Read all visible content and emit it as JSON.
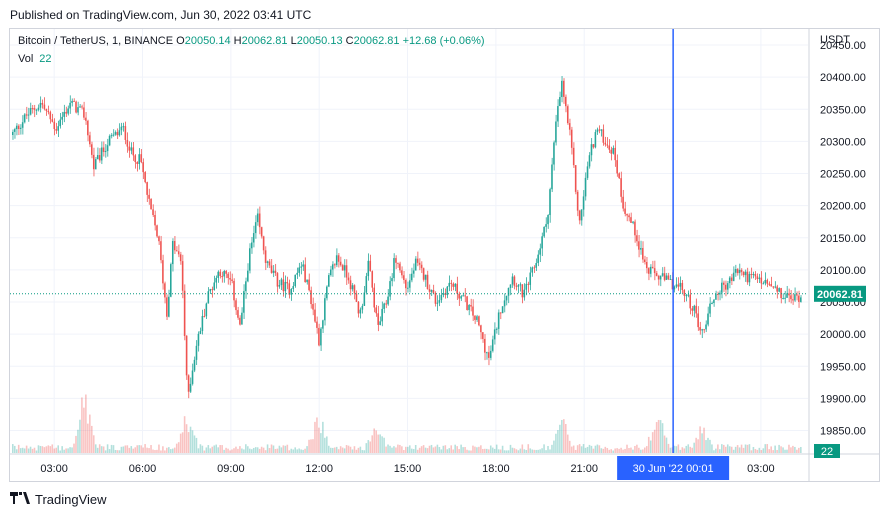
{
  "header": {
    "published": "Published on TradingView.com, Jun 30, 2022 03:41 UTC"
  },
  "legend": {
    "symbol": "Bitcoin / TetherUS, 1, BINANCE",
    "open_label": "O",
    "open": "20050.14",
    "high_label": "H",
    "high": "20062.81",
    "low_label": "L",
    "low": "20050.13",
    "close_label": "C",
    "close": "20062.81",
    "change": "+12.68 (+0.06%)",
    "vol_label": "Vol",
    "vol": "22"
  },
  "brand": {
    "name": "TradingView",
    "logo": "tradingview-logo-icon"
  },
  "colors": {
    "up": "#26a69a",
    "down": "#ef5350",
    "crosshair": "#2962ff",
    "price_tag": "#089981"
  },
  "chart_data": {
    "type": "candlestick",
    "currency": "USDT",
    "ylim": [
      19815,
      20475
    ],
    "y_ticks": [
      19850,
      19900,
      19950,
      20000,
      20050,
      20100,
      20150,
      20200,
      20250,
      20300,
      20350,
      20400,
      20450
    ],
    "y_tick_labels": [
      "19850.00",
      "19900.00",
      "19950.00",
      "20000.00",
      "20050.00",
      "20100.00",
      "20150.00",
      "20200.00",
      "20250.00",
      "20300.00",
      "20350.00",
      "20400.00",
      "20450.00"
    ],
    "x_ticks": [
      "03:00",
      "06:00",
      "09:00",
      "12:00",
      "15:00",
      "18:00",
      "21:00",
      "03:00"
    ],
    "x_tick_positions_hours": [
      3,
      6,
      9,
      12,
      15,
      18,
      21,
      27
    ],
    "x_range_hours": [
      1.5,
      28.6
    ],
    "last_price": "20062.81",
    "last_volume": "22",
    "crosshair_label": "30 Jun '22   00:01",
    "crosshair_hour": 24.02,
    "path": [
      [
        1.5,
        20310
      ],
      [
        2.0,
        20340
      ],
      [
        2.5,
        20360
      ],
      [
        3.0,
        20320
      ],
      [
        3.5,
        20360
      ],
      [
        4.0,
        20340
      ],
      [
        4.3,
        20260
      ],
      [
        4.8,
        20300
      ],
      [
        5.3,
        20320
      ],
      [
        5.6,
        20280
      ],
      [
        5.9,
        20270
      ],
      [
        6.2,
        20200
      ],
      [
        6.5,
        20150
      ],
      [
        6.8,
        20030
      ],
      [
        7.0,
        20140
      ],
      [
        7.3,
        20110
      ],
      [
        7.5,
        19900
      ],
      [
        7.8,
        19980
      ],
      [
        8.2,
        20060
      ],
      [
        8.6,
        20100
      ],
      [
        9.0,
        20080
      ],
      [
        9.3,
        20010
      ],
      [
        9.6,
        20120
      ],
      [
        9.9,
        20180
      ],
      [
        10.2,
        20110
      ],
      [
        10.6,
        20080
      ],
      [
        11.0,
        20070
      ],
      [
        11.4,
        20110
      ],
      [
        11.7,
        20060
      ],
      [
        12.0,
        19990
      ],
      [
        12.3,
        20080
      ],
      [
        12.6,
        20120
      ],
      [
        13.0,
        20090
      ],
      [
        13.4,
        20030
      ],
      [
        13.7,
        20110
      ],
      [
        14.0,
        20010
      ],
      [
        14.3,
        20050
      ],
      [
        14.6,
        20120
      ],
      [
        15.0,
        20070
      ],
      [
        15.3,
        20110
      ],
      [
        15.6,
        20090
      ],
      [
        16.0,
        20050
      ],
      [
        16.5,
        20080
      ],
      [
        17.0,
        20050
      ],
      [
        17.4,
        20020
      ],
      [
        17.8,
        19960
      ],
      [
        18.2,
        20040
      ],
      [
        18.6,
        20090
      ],
      [
        19.0,
        20060
      ],
      [
        19.4,
        20110
      ],
      [
        19.8,
        20180
      ],
      [
        20.1,
        20330
      ],
      [
        20.3,
        20390
      ],
      [
        20.6,
        20300
      ],
      [
        20.9,
        20170
      ],
      [
        21.2,
        20270
      ],
      [
        21.5,
        20320
      ],
      [
        21.8,
        20300
      ],
      [
        22.1,
        20280
      ],
      [
        22.4,
        20200
      ],
      [
        22.8,
        20160
      ],
      [
        23.2,
        20100
      ],
      [
        23.6,
        20090
      ],
      [
        24.0,
        20080
      ],
      [
        24.4,
        20070
      ],
      [
        24.8,
        20040
      ],
      [
        25.1,
        20000
      ],
      [
        25.4,
        20050
      ],
      [
        25.7,
        20070
      ],
      [
        26.0,
        20080
      ],
      [
        26.3,
        20100
      ],
      [
        26.6,
        20090
      ],
      [
        27.0,
        20085
      ],
      [
        27.4,
        20075
      ],
      [
        27.8,
        20060
      ],
      [
        28.2,
        20055
      ],
      [
        28.6,
        20062.81
      ]
    ],
    "volume_spikes": [
      {
        "hour": 4.0,
        "volume": 75
      },
      {
        "hour": 7.5,
        "volume": 42
      },
      {
        "hour": 12.0,
        "volume": 50
      },
      {
        "hour": 14.0,
        "volume": 28
      },
      {
        "hour": 20.3,
        "volume": 40
      },
      {
        "hour": 23.6,
        "volume": 55
      },
      {
        "hour": 25.1,
        "volume": 30
      }
    ],
    "volume_max": 110
  }
}
